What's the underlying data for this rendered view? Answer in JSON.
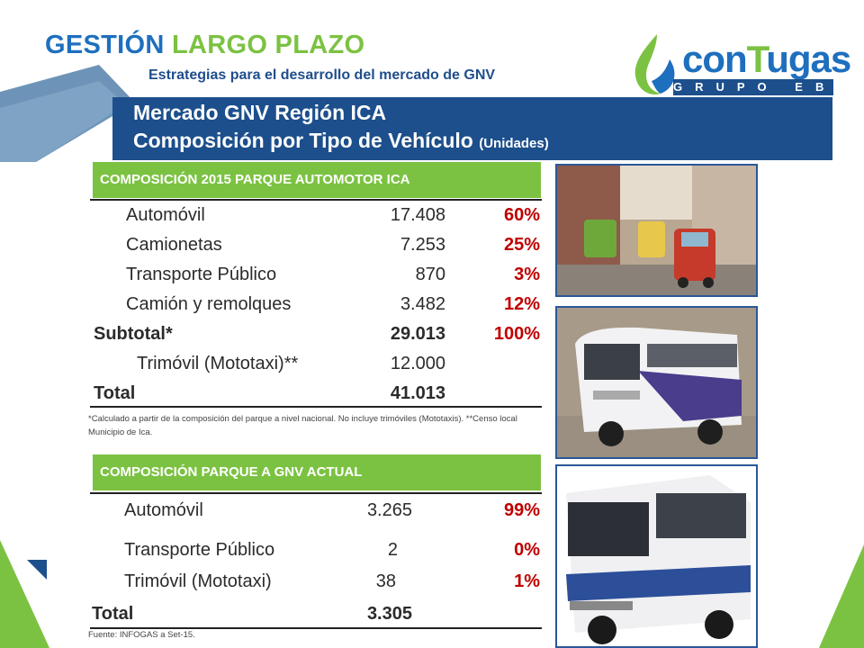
{
  "header": {
    "title_part1": "GESTIÓN",
    "title_part2": "LARGO PLAZO",
    "subtitle": "Estrategias para el desarrollo del mercado de GNV"
  },
  "logo": {
    "text_con": "con",
    "text_t": "T",
    "text_u": "u",
    "text_gas": "gas",
    "tagline": "GRUPO EB"
  },
  "banner": {
    "line1": "Mercado GNV Región ICA",
    "line2": "Composición por Tipo de Vehículo",
    "line2_small": "(Unidades)"
  },
  "table1": {
    "heading": "COMPOSICIÓN 2015 PARQUE AUTOMOTOR ICA",
    "rows": [
      {
        "label": "Automóvil",
        "value": "17.408",
        "pct": "60%"
      },
      {
        "label": "Camionetas",
        "value": "7.253",
        "pct": "25%"
      },
      {
        "label": "Transporte Público",
        "value": "870",
        "pct": "3%"
      },
      {
        "label": "Camión y remolques",
        "value": "3.482",
        "pct": "12%"
      }
    ],
    "subtotal": {
      "label": "Subtotal*",
      "value": "29.013",
      "pct": "100%"
    },
    "trimovil": {
      "label": "Trimóvil (Mototaxi)**",
      "value": "12.000"
    },
    "total": {
      "label": "Total",
      "value": "41.013"
    },
    "footnote": "*Calculado a partir de la composición del parque a nivel nacional. No incluye trimóviles (Mototaxis). **Censo local Municipio de Ica."
  },
  "table2": {
    "heading": "COMPOSICIÓN PARQUE A GNV ACTUAL",
    "rows": [
      {
        "label": "Automóvil",
        "value": "3.265",
        "pct": "99%"
      },
      {
        "label": "Transporte Público",
        "value": "2",
        "pct": "0%"
      },
      {
        "label": "Trimóvil (Mototaxi)",
        "value": "38",
        "pct": "1%"
      }
    ],
    "total": {
      "label": "Total",
      "value": "3.305"
    },
    "source": "Fuente: INFOGAS a Set-15."
  },
  "colors": {
    "blue": "#1c4f8c",
    "green": "#7cc242",
    "red": "#c00000",
    "title_blue": "#1e6fbe"
  }
}
